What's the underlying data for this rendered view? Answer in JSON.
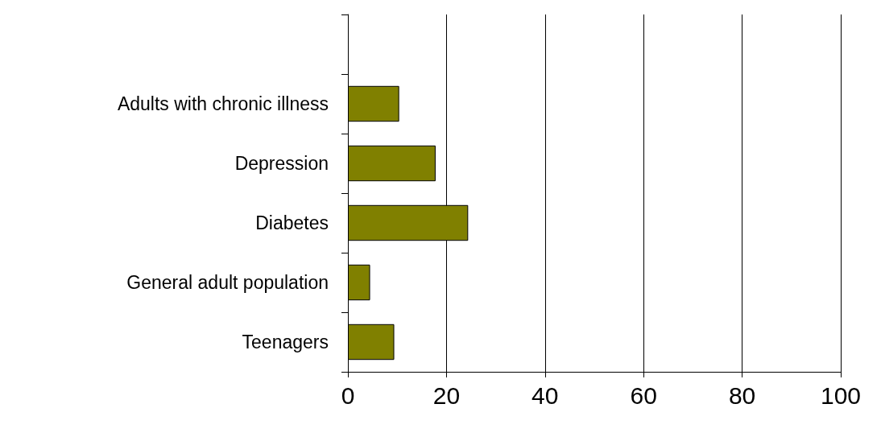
{
  "chart_data": {
    "type": "bar",
    "orientation": "horizontal",
    "categories": [
      null,
      "Adults with chronic illness",
      "Depression",
      "Diabetes",
      "General adult population",
      "Teenagers"
    ],
    "values": [
      null,
      10.4,
      17.8,
      24.4,
      4.5,
      9.4
    ],
    "color": "#808000",
    "xlim": [
      0,
      100
    ],
    "xticks": [
      0,
      20,
      40,
      60,
      80,
      100
    ],
    "grid": "x"
  }
}
